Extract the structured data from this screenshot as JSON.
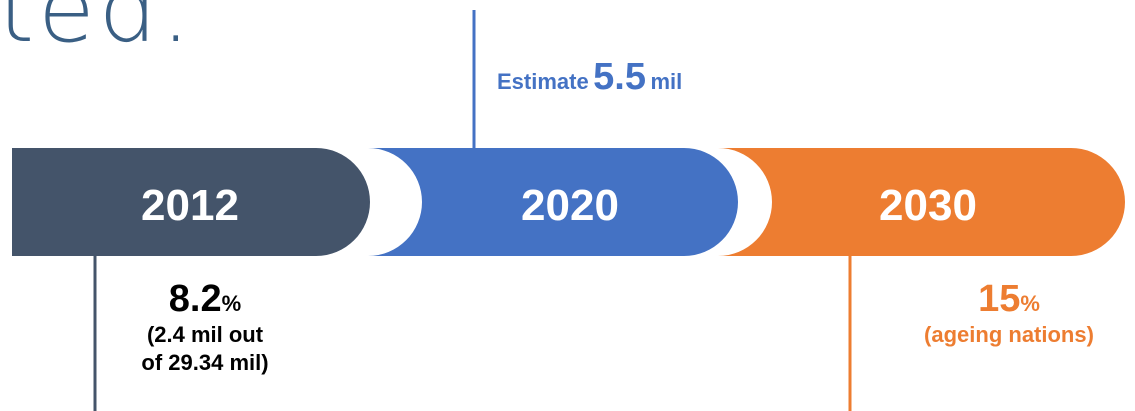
{
  "title_fragment": "ted.",
  "timeline": [
    {
      "year": "2012",
      "color": "#44546a"
    },
    {
      "year": "2020",
      "color": "#4472c4"
    },
    {
      "year": "2030",
      "color": "#ed7d31"
    }
  ],
  "estimate": {
    "prefix": "Estimate",
    "value": "5.5",
    "unit": "mil"
  },
  "stat_2012": {
    "value": "8.2",
    "unit": "%",
    "note_line1": "(2.4 mil out",
    "note_line2": "of 29.34 mil)"
  },
  "stat_2030": {
    "value": "15",
    "unit": "%",
    "note": "(ageing nations)"
  },
  "colors": {
    "slate": "#44546a",
    "blue": "#4472c4",
    "orange": "#ed7d31",
    "title": "#3a5f84"
  }
}
